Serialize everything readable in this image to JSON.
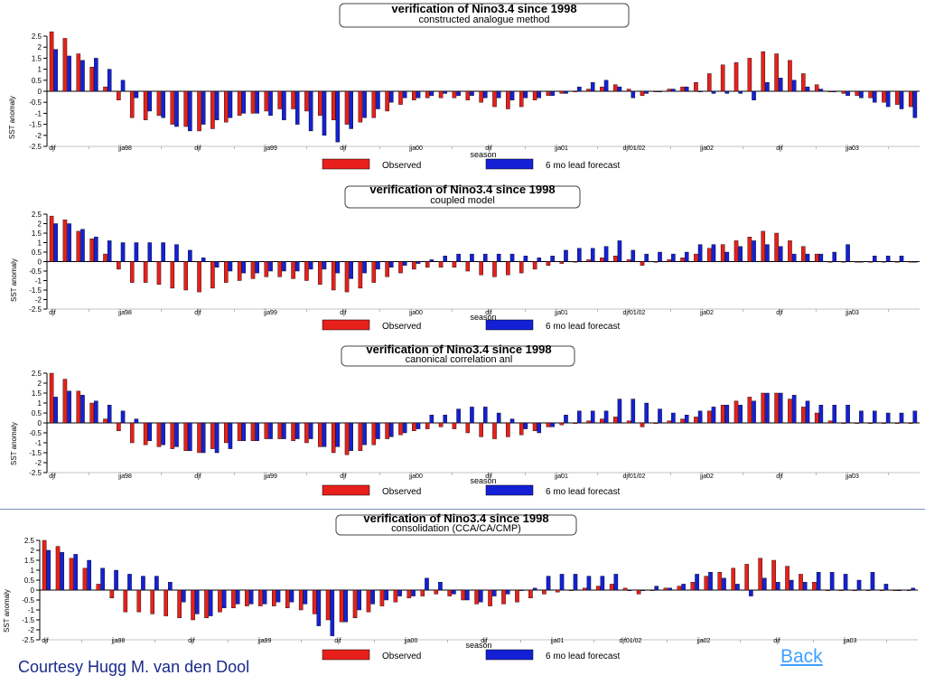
{
  "colors": {
    "observed": "#e8201c",
    "forecast": "#1420d6",
    "axis": "#000000",
    "frame": "#444444"
  },
  "footer": {
    "credit": "Courtesy Hugg M. van den Dool",
    "back": "Back"
  },
  "chart_data": [
    {
      "type": "bar",
      "title": "verification of Nino3.4 since 1998",
      "subtitle": "constructed analogue method",
      "xlabel": "season",
      "ylabel": "SST anomaly",
      "ytick_labels": [
        "2.5",
        "2",
        "1.5",
        "1",
        "0.5",
        "0",
        "-0.5",
        "-1",
        "-1.5",
        "-2",
        "-2.5"
      ],
      "ylim": [
        -2.5,
        2.5
      ],
      "xtick_labels": [
        "djf",
        "",
        "jja98",
        "",
        "djf",
        "",
        "jja99",
        "",
        "djf",
        "",
        "jja00",
        "",
        "djf",
        "",
        "jja01",
        "",
        "djf01/02",
        "",
        "jja02",
        "",
        "djf",
        "",
        "jja03",
        ""
      ],
      "legend": [
        "Observed",
        "6 mo lead forecast"
      ],
      "series": [
        {
          "name": "Observed",
          "values": [
            2.7,
            2.4,
            1.7,
            1.1,
            0.2,
            -0.4,
            -1.2,
            -1.3,
            -1.1,
            -1.5,
            -1.6,
            -1.8,
            -1.7,
            -1.4,
            -1.1,
            -1.0,
            -0.9,
            -0.8,
            -0.8,
            -0.9,
            -1.1,
            -1.3,
            -1.5,
            -1.4,
            -1.2,
            -0.9,
            -0.6,
            -0.4,
            -0.3,
            -0.3,
            -0.3,
            -0.4,
            -0.5,
            -0.7,
            -0.8,
            -0.7,
            -0.4,
            -0.2,
            -0.1,
            0.0,
            0.1,
            0.2,
            0.3,
            0.1,
            -0.2,
            0.0,
            0.1,
            0.2,
            0.4,
            0.8,
            1.2,
            1.3,
            1.5,
            1.8,
            1.7,
            1.4,
            0.8,
            0.3,
            0.0,
            -0.1,
            -0.2,
            -0.3,
            -0.5,
            -0.6,
            -0.7
          ]
        },
        {
          "name": "6 mo lead forecast",
          "values": [
            1.9,
            1.6,
            1.4,
            1.5,
            1.0,
            0.5,
            -0.3,
            -0.9,
            -1.2,
            -1.6,
            -1.8,
            -1.5,
            -1.3,
            -1.2,
            -1.0,
            -1.0,
            -1.1,
            -1.3,
            -1.5,
            -1.8,
            -2.0,
            -2.3,
            -1.7,
            -1.2,
            -0.8,
            -0.5,
            -0.3,
            -0.3,
            -0.2,
            -0.1,
            -0.2,
            -0.2,
            -0.3,
            -0.3,
            -0.4,
            -0.3,
            -0.3,
            -0.2,
            -0.1,
            0.2,
            0.4,
            0.5,
            0.2,
            -0.3,
            -0.1,
            0.0,
            0.1,
            0.2,
            0.0,
            -0.1,
            -0.1,
            -0.1,
            -0.4,
            0.4,
            0.6,
            0.5,
            0.2,
            0.1,
            0.0,
            -0.2,
            -0.3,
            -0.5,
            -0.7,
            -0.8,
            -1.2
          ]
        }
      ]
    },
    {
      "type": "bar",
      "title": "verification of Nino3.4 since 1998",
      "subtitle": "coupled model",
      "xlabel": "season",
      "ylabel": "SST anomaly",
      "ytick_labels": [
        "2.5",
        "2",
        "1.5",
        "1",
        "0.5",
        "0",
        "-0.5",
        "-1",
        "-1.5",
        "-2",
        "-2.5"
      ],
      "ylim": [
        -2.5,
        2.5
      ],
      "xtick_labels": [
        "djf",
        "",
        "jja98",
        "",
        "djf",
        "",
        "jja99",
        "",
        "djf",
        "",
        "jja00",
        "",
        "djf",
        "",
        "jja01",
        "",
        "djf01/02",
        "",
        "jja02",
        "",
        "djf",
        "",
        "jja03",
        ""
      ],
      "legend": [
        "Observed",
        "6 mo lead forecast"
      ],
      "series": [
        {
          "name": "Observed",
          "values": [
            2.4,
            2.2,
            1.6,
            1.2,
            0.4,
            -0.4,
            -1.1,
            -1.1,
            -1.2,
            -1.4,
            -1.5,
            -1.6,
            -1.4,
            -1.1,
            -1.0,
            -0.9,
            -0.8,
            -0.8,
            -0.9,
            -1.0,
            -1.2,
            -1.5,
            -1.6,
            -1.4,
            -1.1,
            -0.8,
            -0.6,
            -0.4,
            -0.3,
            -0.3,
            -0.3,
            -0.5,
            -0.7,
            -0.8,
            -0.7,
            -0.6,
            -0.4,
            -0.2,
            -0.1,
            0.0,
            0.1,
            0.2,
            0.3,
            0.1,
            -0.2,
            0.0,
            0.1,
            0.2,
            0.4,
            0.7,
            0.9,
            1.1,
            1.3,
            1.6,
            1.5,
            1.1,
            0.8,
            0.4,
            0.0,
            0.0,
            0.0,
            0.0,
            0.0,
            0.0,
            0.0
          ]
        },
        {
          "name": "6 mo lead forecast",
          "values": [
            2.0,
            2.0,
            1.7,
            1.3,
            1.1,
            1.0,
            1.0,
            1.0,
            1.0,
            0.9,
            0.6,
            0.2,
            -0.3,
            -0.5,
            -0.6,
            -0.6,
            -0.5,
            -0.5,
            -0.5,
            -0.4,
            -0.4,
            -0.6,
            -0.9,
            -0.6,
            -0.4,
            -0.3,
            -0.2,
            -0.1,
            0.1,
            0.3,
            0.4,
            0.4,
            0.4,
            0.4,
            0.4,
            0.3,
            0.2,
            0.3,
            0.6,
            0.7,
            0.7,
            0.8,
            1.1,
            0.6,
            0.4,
            0.5,
            0.4,
            0.5,
            0.9,
            0.9,
            0.5,
            0.8,
            1.1,
            0.9,
            0.8,
            0.4,
            0.4,
            0.4,
            0.5,
            0.9,
            0.0,
            0.3,
            0.3,
            0.3,
            0.0
          ]
        }
      ]
    },
    {
      "type": "bar",
      "title": "verification of Nino3.4 since 1998",
      "subtitle": "canonical correlation anl",
      "xlabel": "season",
      "ylabel": "SST anomaly",
      "ytick_labels": [
        "2.5",
        "2",
        "1.5",
        "1",
        "0.5",
        "0",
        "-0.5",
        "-1",
        "-1.5",
        "-2",
        "-2.5"
      ],
      "ylim": [
        -2.5,
        2.5
      ],
      "xtick_labels": [
        "djf",
        "",
        "jja98",
        "",
        "djf",
        "",
        "jja99",
        "",
        "djf",
        "",
        "jja00",
        "",
        "djf",
        "",
        "jja01",
        "",
        "djf01/02",
        "",
        "jja02",
        "",
        "djf",
        "",
        "jja03",
        ""
      ],
      "legend": [
        "Observed",
        "6 mo lead forecast"
      ],
      "series": [
        {
          "name": "Observed",
          "values": [
            2.5,
            2.2,
            1.6,
            1.0,
            0.2,
            -0.4,
            -1.0,
            -1.1,
            -1.2,
            -1.3,
            -1.4,
            -1.5,
            -1.3,
            -1.0,
            -0.9,
            -0.9,
            -0.8,
            -0.8,
            -0.9,
            -1.0,
            -1.2,
            -1.5,
            -1.6,
            -1.4,
            -1.1,
            -0.8,
            -0.6,
            -0.4,
            -0.3,
            -0.2,
            -0.3,
            -0.5,
            -0.7,
            -0.8,
            -0.7,
            -0.6,
            -0.4,
            -0.2,
            -0.1,
            0.0,
            0.1,
            0.2,
            0.3,
            0.1,
            -0.2,
            0.0,
            0.1,
            0.2,
            0.3,
            0.6,
            0.9,
            1.1,
            1.3,
            1.5,
            1.5,
            1.2,
            0.8,
            0.5,
            0.1,
            0.0,
            0.0,
            0.0,
            0.0,
            0.0,
            0.0
          ]
        },
        {
          "name": "6 mo lead forecast",
          "values": [
            1.3,
            1.6,
            1.4,
            1.1,
            0.9,
            0.6,
            0.2,
            -0.9,
            -1.1,
            -1.2,
            -1.4,
            -1.5,
            -1.5,
            -1.3,
            -0.9,
            -0.9,
            -0.8,
            -0.8,
            -0.8,
            -0.8,
            -1.2,
            -1.2,
            -1.4,
            -1.1,
            -0.8,
            -0.7,
            -0.5,
            -0.3,
            0.4,
            0.4,
            0.7,
            0.8,
            0.8,
            0.5,
            0.2,
            -0.3,
            -0.5,
            -0.2,
            0.4,
            0.6,
            0.6,
            0.6,
            1.2,
            1.2,
            1.0,
            0.7,
            0.5,
            0.4,
            0.6,
            0.8,
            0.9,
            0.9,
            1.1,
            1.5,
            1.5,
            1.4,
            1.1,
            0.9,
            0.9,
            0.9,
            0.6,
            0.6,
            0.5,
            0.5,
            0.6
          ]
        }
      ]
    },
    {
      "type": "bar",
      "title": "verification of Nino3.4 since 1998",
      "subtitle": "consolidation (CCA/CA/CMP)",
      "xlabel": "season",
      "ylabel": "SST anomaly",
      "ytick_labels": [
        "2.5",
        "2",
        "1.5",
        "1",
        "0.5",
        "0",
        "-0.5",
        "-1",
        "-1.5",
        "-2",
        "-2.5"
      ],
      "ylim": [
        -2.5,
        2.5
      ],
      "xtick_labels": [
        "djf",
        "",
        "jja98",
        "",
        "djf",
        "",
        "jja99",
        "",
        "djf",
        "",
        "jja00",
        "",
        "djf",
        "",
        "jja01",
        "",
        "djf01/02",
        "",
        "jja02",
        "",
        "djf",
        "",
        "jja03",
        ""
      ],
      "legend": [
        "Observed",
        "6 mo lead forecast"
      ],
      "series": [
        {
          "name": "Observed",
          "values": [
            2.5,
            2.2,
            1.6,
            1.1,
            0.3,
            -0.4,
            -1.1,
            -1.1,
            -1.2,
            -1.3,
            -1.4,
            -1.5,
            -1.4,
            -1.1,
            -0.9,
            -0.8,
            -0.8,
            -0.8,
            -0.9,
            -1.0,
            -1.2,
            -1.5,
            -1.6,
            -1.4,
            -1.1,
            -0.8,
            -0.6,
            -0.4,
            -0.3,
            -0.2,
            -0.3,
            -0.5,
            -0.7,
            -0.8,
            -0.7,
            -0.6,
            -0.4,
            -0.2,
            -0.1,
            0.0,
            0.1,
            0.2,
            0.3,
            0.1,
            -0.2,
            0.0,
            0.1,
            0.2,
            0.4,
            0.7,
            0.9,
            1.1,
            1.3,
            1.6,
            1.5,
            1.2,
            0.8,
            0.4,
            0.0,
            0.0,
            0.0,
            0.0,
            0.0,
            0.0,
            0.0
          ]
        },
        {
          "name": "6 mo lead forecast",
          "values": [
            2.0,
            1.9,
            1.8,
            1.5,
            1.1,
            1.0,
            0.8,
            0.7,
            0.7,
            0.4,
            -0.6,
            -1.2,
            -1.3,
            -0.9,
            -0.7,
            -0.7,
            -0.7,
            -0.6,
            -0.6,
            -0.7,
            -1.8,
            -2.3,
            -1.6,
            -1.0,
            -0.7,
            -0.5,
            -0.3,
            -0.3,
            0.6,
            0.4,
            -0.2,
            -0.5,
            -0.6,
            -0.3,
            -0.2,
            0.0,
            0.1,
            0.7,
            0.8,
            0.8,
            0.7,
            0.7,
            0.8,
            0.0,
            0.0,
            0.2,
            0.1,
            0.3,
            0.8,
            0.9,
            0.6,
            0.3,
            -0.3,
            0.6,
            0.4,
            0.5,
            0.4,
            0.9,
            0.9,
            0.8,
            0.5,
            0.9,
            0.3,
            0.0,
            0.1
          ]
        }
      ]
    }
  ]
}
